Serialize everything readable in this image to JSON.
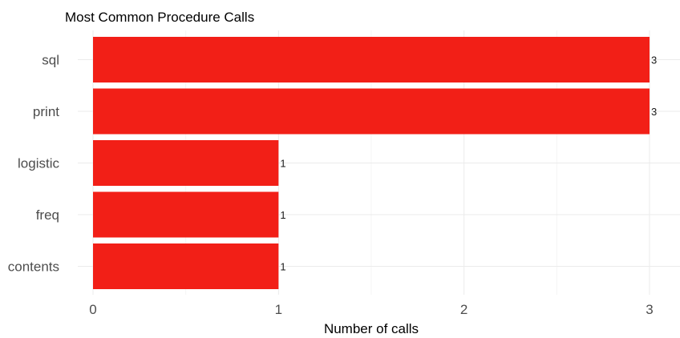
{
  "chart_data": {
    "type": "bar",
    "orientation": "horizontal",
    "title": "Most Common Procedure Calls",
    "xlabel": "Number of calls",
    "ylabel": "",
    "categories": [
      "sql",
      "print",
      "logistic",
      "freq",
      "contents"
    ],
    "values": [
      3,
      3,
      1,
      1,
      1
    ],
    "data_labels": [
      "3",
      "3",
      "1",
      "1",
      "1"
    ],
    "xlim": [
      0,
      3
    ],
    "x_ticks": [
      0,
      1,
      2,
      3
    ],
    "grid": true,
    "legend": "none",
    "bar_color": "#F21F17"
  }
}
